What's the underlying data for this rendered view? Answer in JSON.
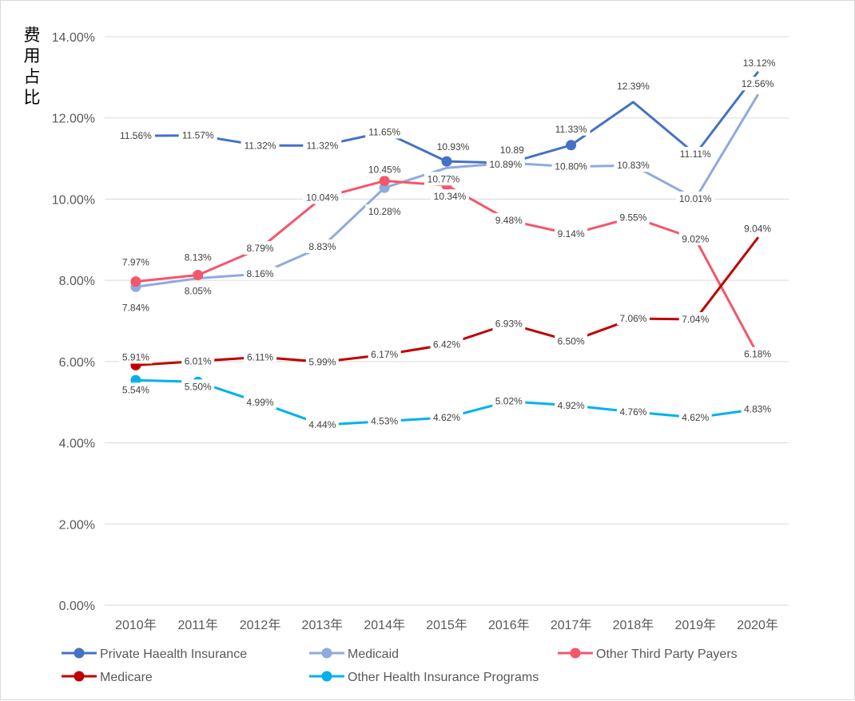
{
  "chart_data": {
    "type": "line",
    "title": "",
    "xlabel": "",
    "ylabel": "费用占比",
    "ylim": [
      0,
      14
    ],
    "yticks": [
      "0.00%",
      "2.00%",
      "4.00%",
      "6.00%",
      "8.00%",
      "10.00%",
      "12.00%",
      "14.00%"
    ],
    "grid": true,
    "legend_position": "bottom",
    "categories": [
      "2010年",
      "2011年",
      "2012年",
      "2013年",
      "2014年",
      "2015年",
      "2016年",
      "2017年",
      "2018年",
      "2019年",
      "2020年"
    ],
    "series": [
      {
        "name": "Private Haealth Insurance",
        "color": "#4472C4",
        "values": [
          11.56,
          11.57,
          11.32,
          11.32,
          11.65,
          10.93,
          10.89,
          11.33,
          12.39,
          11.11,
          13.12
        ],
        "labels": [
          "11.56%",
          "11.57%",
          "11.32%",
          "11.32%",
          "11.65%",
          "10.93%",
          "10.89",
          "11.33%",
          "12.39%",
          "11.11%",
          "13.12%"
        ]
      },
      {
        "name": "Medicaid",
        "color": "#8FAADC",
        "values": [
          7.84,
          8.05,
          8.16,
          8.83,
          10.28,
          10.77,
          10.89,
          10.8,
          10.83,
          10.01,
          12.56
        ],
        "labels": [
          "7.84%",
          "8.05%",
          "8.16%",
          "8.83%",
          "10.28%",
          "10.77%",
          "10.89%",
          "10.80%",
          "10.83%",
          "10.01%",
          "12.56%"
        ]
      },
      {
        "name": "Other Third Party Payers",
        "color": "#F4566A",
        "values": [
          7.97,
          8.13,
          8.79,
          10.04,
          10.45,
          10.34,
          9.48,
          9.14,
          9.55,
          9.02,
          6.18
        ],
        "labels": [
          "7.97%",
          "8.13%",
          "8.79%",
          "10.04%",
          "10.45%",
          "10.34%",
          "9.48%",
          "9.14%",
          "9.55%",
          "9.02%",
          "6.18%"
        ]
      },
      {
        "name": "Medicare",
        "color": "#C00000",
        "values": [
          5.91,
          6.01,
          6.11,
          5.99,
          6.17,
          6.42,
          6.93,
          6.5,
          7.06,
          7.04,
          9.04
        ],
        "labels": [
          "5.91%",
          "6.01%",
          "6.11%",
          "5.99%",
          "6.17%",
          "6.42%",
          "6.93%",
          "6.50%",
          "7.06%",
          "7.04%",
          "9.04%"
        ]
      },
      {
        "name": "Other Health Insurance Programs",
        "color": "#00B0F0",
        "values": [
          5.54,
          5.5,
          4.99,
          4.44,
          4.53,
          4.62,
          5.02,
          4.92,
          4.76,
          4.62,
          4.83
        ],
        "labels": [
          "5.54%",
          "5.50%",
          "4.99%",
          "4.44%",
          "4.53%",
          "4.62%",
          "5.02%",
          "4.92%",
          "4.76%",
          "4.62%",
          "4.83%"
        ]
      }
    ]
  }
}
